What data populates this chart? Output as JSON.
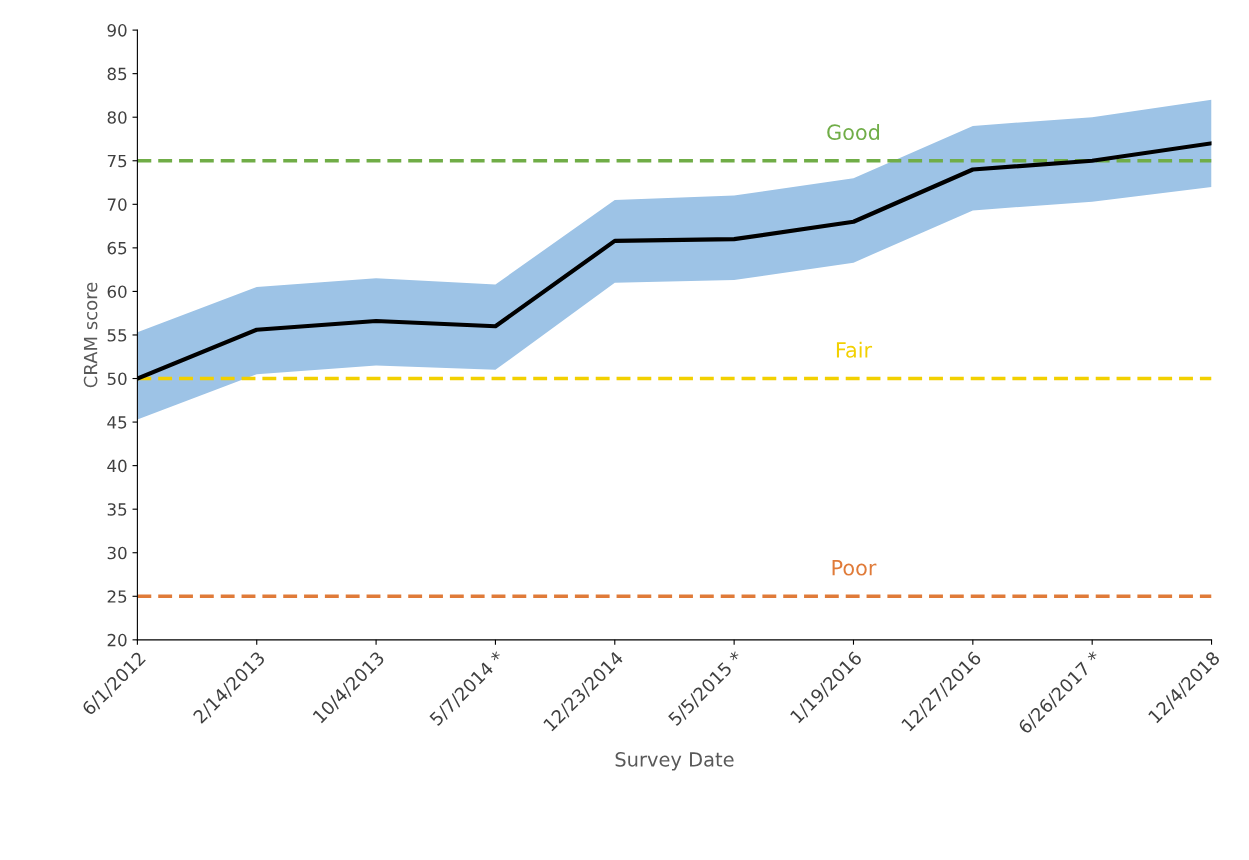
{
  "chart_data": {
    "type": "line",
    "xlabel": "Survey Date",
    "ylabel": "CRAM score",
    "categories": [
      "6/1/2012",
      "2/14/2013",
      "10/4/2013",
      "5/7/2014 *",
      "12/23/2014",
      "5/5/2015 *",
      "1/19/2016",
      "12/27/2016",
      "6/26/2017 *",
      "12/4/2018"
    ],
    "series": [
      {
        "color": "#000000",
        "values": [
          50,
          55.6,
          56.6,
          56,
          65.8,
          66,
          68,
          74,
          75,
          77
        ],
        "lower": [
          45.3,
          50.5,
          51.5,
          51,
          61,
          61.3,
          63.3,
          69.3,
          70.3,
          72
        ],
        "upper": [
          55.3,
          60.5,
          61.5,
          60.8,
          70.5,
          71,
          73,
          79,
          80,
          82
        ]
      }
    ],
    "ylim": [
      20,
      90
    ],
    "yticks": [
      20,
      25,
      30,
      35,
      40,
      45,
      50,
      55,
      60,
      65,
      70,
      75,
      80,
      85,
      90
    ],
    "ref_lines": [
      {
        "axis": "y",
        "value": 75,
        "label": "Good",
        "color": "#70ad47",
        "line_style": "dashed"
      },
      {
        "axis": "y",
        "value": 50,
        "label": "Fair",
        "color": "#f2d000",
        "line_style": "dashed"
      },
      {
        "axis": "y",
        "value": 25,
        "label": "Poor",
        "color": "#e07b39",
        "line_style": "dashed"
      }
    ],
    "grid": false,
    "legend": false,
    "marker": "none",
    "line_style": "solid"
  }
}
